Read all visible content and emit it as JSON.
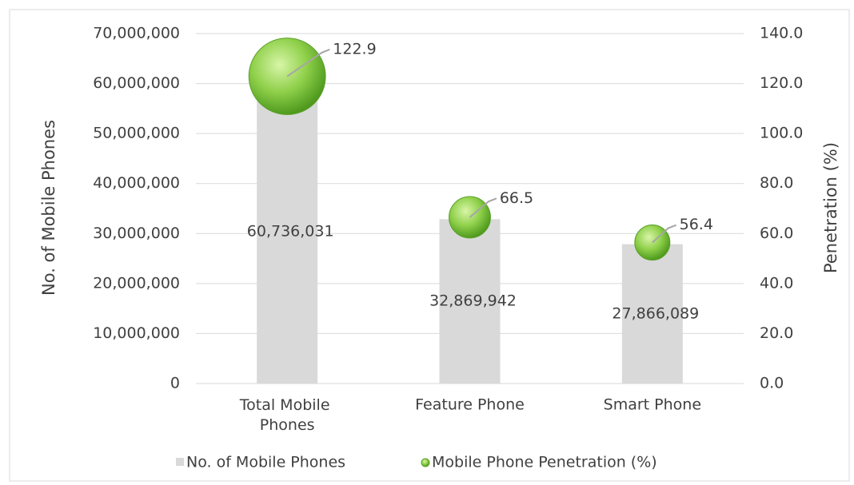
{
  "chart_data": {
    "type": "bar",
    "categories": [
      "Total Mobile Phones",
      "Feature Phone",
      "Smart Phone"
    ],
    "series": [
      {
        "name": "No. of Mobile Phones",
        "type": "bar",
        "color": "#d9d9d9",
        "axis": "y",
        "values": [
          60736031,
          32869942,
          27866089
        ],
        "value_labels": [
          "60,736,031",
          "32,869,942",
          "27,866,089"
        ]
      },
      {
        "name": "Mobile Phone Penetration (%)",
        "type": "bubble",
        "color": "#7cc242",
        "axis": "y2",
        "values": [
          122.9,
          66.5,
          56.4
        ]
      }
    ],
    "ylabel": "No. of Mobile Phones",
    "y2label": "Penetration (%)",
    "ylim": [
      0,
      70000000
    ],
    "yticks": [
      0,
      {
        "value": 10000000,
        "label": "10,000,000"
      },
      {
        "value": 20000000,
        "label": "20,000,000"
      },
      {
        "value": 30000000,
        "label": "30,000,000"
      },
      {
        "value": 40000000,
        "label": "40,000,000"
      },
      {
        "value": 50000000,
        "label": "50,000,000"
      },
      {
        "value": 60000000,
        "label": "60,000,000"
      },
      {
        "value": 70000000,
        "label": "70,000,000"
      }
    ],
    "y2lim": [
      0,
      140
    ],
    "y2ticks": [
      {
        "value": 0,
        "label": "0.0"
      },
      {
        "value": 20,
        "label": "20.0"
      },
      {
        "value": 40,
        "label": "40.0"
      },
      {
        "value": 60,
        "label": "60.0"
      },
      {
        "value": 80,
        "label": "80.0"
      },
      {
        "value": 100,
        "label": "100.0"
      },
      {
        "value": 120,
        "label": "120.0"
      },
      {
        "value": 140,
        "label": "140.0"
      }
    ],
    "grid": true,
    "legend": "bottom"
  }
}
